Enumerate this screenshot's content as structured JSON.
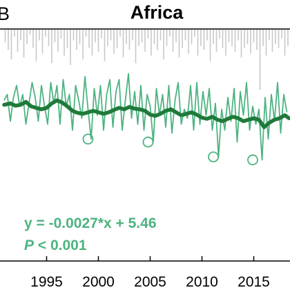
{
  "panel_letter": "B",
  "chart_data": {
    "type": "line",
    "title": "Africa",
    "xlabel": "",
    "ylabel": "",
    "xlim": [
      1990.5,
      2018.5
    ],
    "ylim": [
      0,
      7.8
    ],
    "x_ticks": [
      1995,
      2000,
      2005,
      2010,
      2015
    ],
    "x_tick_labels": [
      "1995",
      "2000",
      "2005",
      "2010",
      "2015"
    ],
    "annotations": {
      "equation": "y = -0.0027*x + 5.46",
      "p_prefix": "P",
      "p_suffix": " < 0.001"
    },
    "grid": false,
    "legend": "none",
    "colors": {
      "monthly": "#4db380",
      "smoothed": "#1f7a3a",
      "bars": "#c8c8c8",
      "equation": "#4db380"
    },
    "series": [
      {
        "role": "monthly",
        "x": [
          1990.9,
          1991.2,
          1991.5,
          1991.8,
          1992.1,
          1992.4,
          1992.7,
          1993.0,
          1993.3,
          1993.6,
          1993.9,
          1994.2,
          1994.5,
          1994.8,
          1995.1,
          1995.4,
          1995.7,
          1996.0,
          1996.3,
          1996.6,
          1996.9,
          1997.2,
          1997.5,
          1997.8,
          1998.1,
          1998.4,
          1998.7,
          1999.0,
          1999.3,
          1999.6,
          1999.9,
          2000.2,
          2000.5,
          2000.8,
          2001.1,
          2001.4,
          2001.7,
          2002.0,
          2002.3,
          2002.6,
          2002.9,
          2003.2,
          2003.5,
          2003.8,
          2004.1,
          2004.4,
          2004.7,
          2005.0,
          2005.3,
          2005.6,
          2005.9,
          2006.2,
          2006.5,
          2006.8,
          2007.1,
          2007.4,
          2007.7,
          2008.0,
          2008.3,
          2008.6,
          2008.9,
          2009.2,
          2009.5,
          2009.8,
          2010.1,
          2010.4,
          2010.7,
          2011.0,
          2011.3,
          2011.6,
          2011.9,
          2012.2,
          2012.5,
          2012.8,
          2013.1,
          2013.4,
          2013.7,
          2014.0,
          2014.3,
          2014.6,
          2014.9,
          2015.2,
          2015.5,
          2015.8,
          2016.1,
          2016.4,
          2016.7,
          2017.0,
          2017.3,
          2017.6,
          2017.9,
          2018.2
        ],
        "y": [
          5.4,
          5.6,
          4.7,
          5.5,
          5.9,
          5.2,
          5.6,
          4.6,
          5.3,
          6.0,
          5.5,
          4.7,
          5.9,
          5.2,
          4.6,
          6.0,
          5.3,
          5.9,
          4.6,
          6.1,
          5.2,
          5.6,
          4.4,
          5.9,
          5.4,
          4.8,
          6.2,
          5.1,
          4.1,
          5.8,
          4.9,
          5.9,
          4.4,
          5.6,
          6.1,
          4.5,
          5.7,
          6.1,
          4.4,
          5.4,
          6.3,
          4.8,
          5.7,
          4.6,
          5.9,
          4.4,
          5.6,
          5.2,
          4.0,
          5.8,
          4.9,
          5.6,
          4.5,
          5.9,
          4.3,
          5.4,
          6.0,
          4.6,
          5.1,
          4.8,
          5.9,
          4.4,
          6.0,
          4.6,
          5.7,
          4.9,
          5.8,
          4.4,
          5.3,
          3.5,
          5.1,
          4.4,
          5.5,
          4.7,
          5.8,
          4.0,
          5.7,
          4.9,
          6.0,
          4.4,
          5.2,
          4.6,
          5.1,
          3.4,
          5.5,
          4.1,
          5.6,
          4.7,
          6.0,
          4.3,
          5.6,
          5.0
        ]
      },
      {
        "role": "smoothed",
        "x": [
          1990.9,
          1991.5,
          1992.0,
          1992.5,
          1993.0,
          1993.5,
          1994.0,
          1994.5,
          1995.0,
          1995.5,
          1996.0,
          1996.5,
          1997.0,
          1997.5,
          1998.0,
          1998.5,
          1999.0,
          1999.5,
          2000.0,
          2000.5,
          2001.0,
          2001.5,
          2002.0,
          2002.5,
          2003.0,
          2003.5,
          2004.0,
          2004.5,
          2005.0,
          2005.5,
          2006.0,
          2006.5,
          2007.0,
          2007.5,
          2008.0,
          2008.5,
          2009.0,
          2009.5,
          2010.0,
          2010.5,
          2011.0,
          2011.5,
          2012.0,
          2012.5,
          2013.0,
          2013.5,
          2014.0,
          2014.5,
          2015.0,
          2015.5,
          2016.0,
          2016.5,
          2017.0,
          2017.5,
          2018.0,
          2018.4
        ],
        "y": [
          5.25,
          5.3,
          5.22,
          5.25,
          5.35,
          5.2,
          5.15,
          5.1,
          5.15,
          5.3,
          5.4,
          5.33,
          5.2,
          5.05,
          4.98,
          4.95,
          5.0,
          5.05,
          5.0,
          4.95,
          5.0,
          5.08,
          5.15,
          5.1,
          5.18,
          5.12,
          5.1,
          5.05,
          4.92,
          4.88,
          4.95,
          5.05,
          5.1,
          5.0,
          4.9,
          4.95,
          5.0,
          4.92,
          4.82,
          4.78,
          4.85,
          4.75,
          4.7,
          4.78,
          4.85,
          4.8,
          4.7,
          4.75,
          4.8,
          4.75,
          4.5,
          4.65,
          4.75,
          4.8,
          4.9,
          4.8
        ]
      }
    ],
    "circled_minima": [
      {
        "x": 1999.0,
        "y": 4.1
      },
      {
        "x": 2004.8,
        "y": 4.0
      },
      {
        "x": 2011.1,
        "y": 3.5
      },
      {
        "x": 2014.9,
        "y": 3.4
      }
    ],
    "bars": {
      "x": [
        1991.0,
        1991.3,
        1991.6,
        1991.9,
        1992.2,
        1992.5,
        1992.8,
        1993.1,
        1993.4,
        1993.7,
        1994.0,
        1994.3,
        1994.6,
        1994.9,
        1995.2,
        1995.5,
        1995.8,
        1996.1,
        1996.4,
        1996.7,
        1997.0,
        1997.3,
        1997.6,
        1997.9,
        1998.2,
        1998.5,
        1998.8,
        1999.1,
        1999.4,
        1999.7,
        2000.0,
        2000.3,
        2000.6,
        2000.9,
        2001.2,
        2001.5,
        2001.8,
        2002.1,
        2002.4,
        2002.7,
        2003.0,
        2003.3,
        2003.6,
        2003.9,
        2004.2,
        2004.5,
        2004.8,
        2005.1,
        2005.4,
        2005.7,
        2006.0,
        2006.3,
        2006.6,
        2006.9,
        2007.2,
        2007.5,
        2007.8,
        2008.1,
        2008.4,
        2008.7,
        2009.0,
        2009.3,
        2009.6,
        2009.9,
        2010.2,
        2010.5,
        2010.8,
        2011.1,
        2011.4,
        2011.7,
        2012.0,
        2012.3,
        2012.6,
        2012.9,
        2013.2,
        2013.5,
        2013.8,
        2014.1,
        2014.4,
        2014.7,
        2015.0,
        2015.3,
        2015.6,
        2015.9,
        2016.2,
        2016.5,
        2016.8,
        2017.1,
        2017.4,
        2017.7,
        2018.0,
        2018.3
      ],
      "depth": [
        0.35,
        0.55,
        0.8,
        0.2,
        0.6,
        0.3,
        0.75,
        0.4,
        0.15,
        0.5,
        0.85,
        0.3,
        0.65,
        0.2,
        0.45,
        0.9,
        0.35,
        0.6,
        0.25,
        0.7,
        0.5,
        0.95,
        0.3,
        0.55,
        0.4,
        0.8,
        0.2,
        0.5,
        0.7,
        0.35,
        0.6,
        0.25,
        0.85,
        0.45,
        0.3,
        0.65,
        0.5,
        0.2,
        0.75,
        0.4,
        0.55,
        0.3,
        0.9,
        0.45,
        0.35,
        0.6,
        0.25,
        0.7,
        0.4,
        0.55,
        0.3,
        0.8,
        0.45,
        0.2,
        0.6,
        0.35,
        0.75,
        0.5,
        0.3,
        0.65,
        0.4,
        0.2,
        0.7,
        0.45,
        0.55,
        0.3,
        0.85,
        0.4,
        0.6,
        0.25,
        0.5,
        0.7,
        0.35,
        0.45,
        0.6,
        0.3,
        0.75,
        0.5,
        0.4,
        0.65,
        0.35,
        0.55,
        1.6,
        0.45,
        0.7,
        0.3,
        0.6,
        0.4,
        0.5,
        0.25,
        0.7,
        0.45
      ]
    }
  }
}
